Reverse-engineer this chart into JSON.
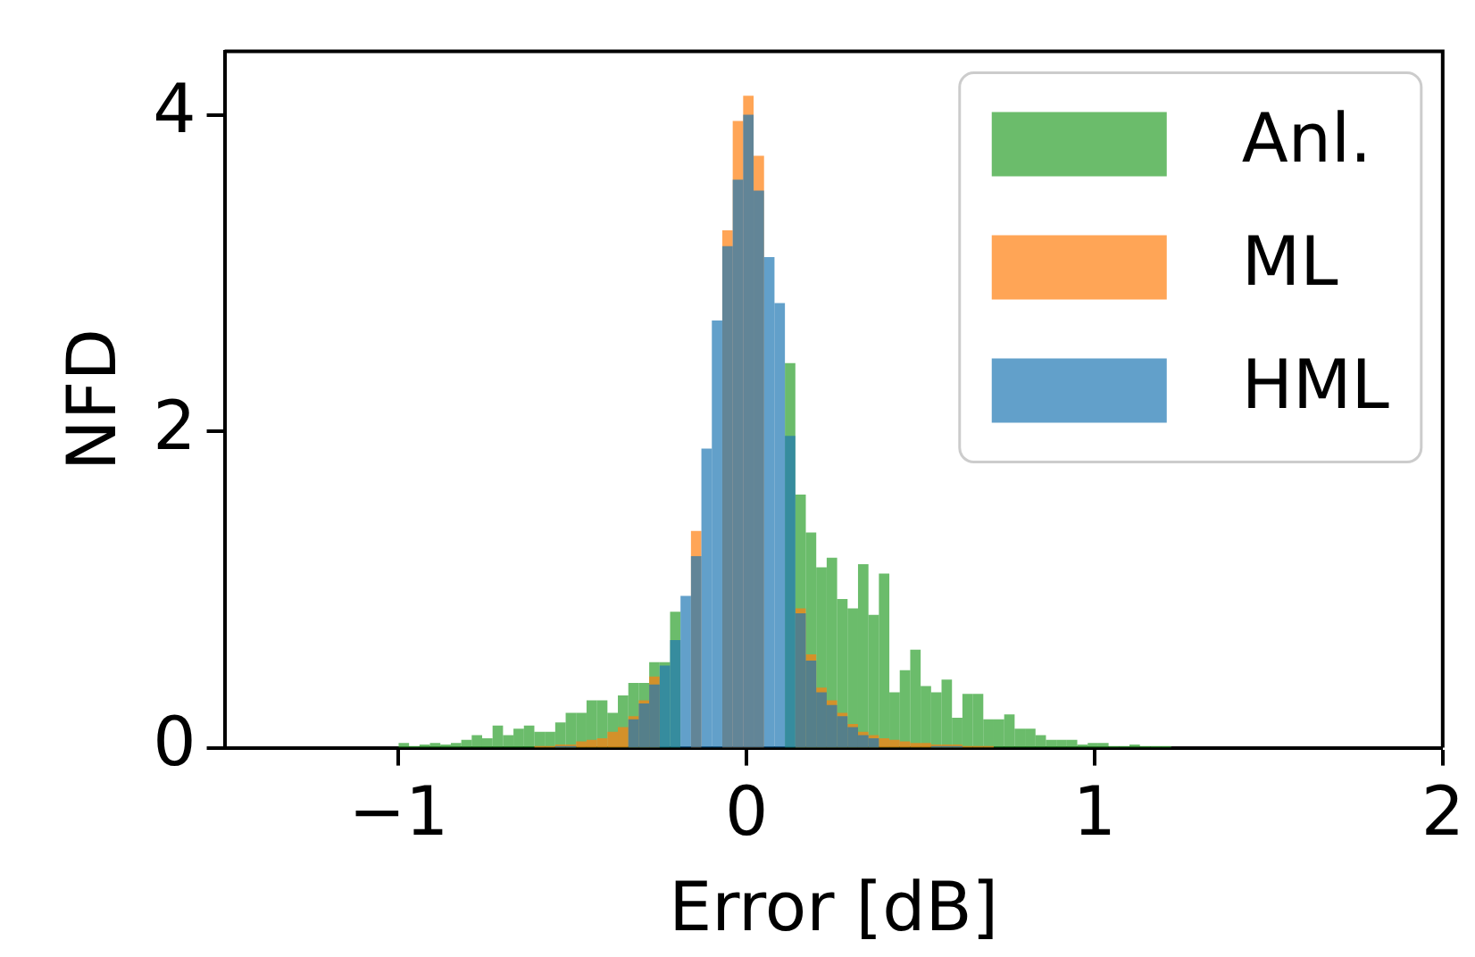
{
  "chart_data": {
    "type": "histogram",
    "xlabel": "Error [dB]",
    "ylabel": "NFD",
    "bins": [
      -1.0,
      -0.97,
      -0.94,
      -0.91,
      -0.88,
      -0.85,
      -0.82,
      -0.79,
      -0.76,
      -0.73,
      -0.7,
      -0.67,
      -0.64,
      -0.61,
      -0.58,
      -0.55,
      -0.52,
      -0.49,
      -0.46,
      -0.43,
      -0.4,
      -0.37,
      -0.34,
      -0.31,
      -0.28,
      -0.25,
      -0.22,
      -0.19,
      -0.16,
      -0.13,
      -0.1,
      -0.07,
      -0.04,
      -0.01,
      0.02,
      0.05,
      0.08,
      0.11,
      0.14,
      0.17,
      0.2,
      0.23,
      0.26,
      0.29,
      0.32,
      0.35,
      0.38,
      0.41,
      0.44,
      0.47,
      0.5,
      0.53,
      0.56,
      0.59,
      0.62,
      0.65,
      0.68,
      0.71,
      0.74,
      0.77,
      0.8,
      0.83,
      0.86,
      0.89,
      0.92,
      0.95,
      0.98,
      1.01,
      1.04,
      1.07,
      1.1,
      1.13,
      1.16,
      1.19,
      1.22
    ],
    "series": [
      {
        "name": "Anl.",
        "color": "#2ca02c",
        "values": [
          0.03,
          0.01,
          0.02,
          0.03,
          0.02,
          0.03,
          0.05,
          0.08,
          0.06,
          0.14,
          0.08,
          0.12,
          0.14,
          0.1,
          0.1,
          0.16,
          0.22,
          0.22,
          0.3,
          0.3,
          0.22,
          0.33,
          0.41,
          0.41,
          0.54,
          0.54,
          0.86,
          null,
          null,
          null,
          null,
          null,
          null,
          null,
          null,
          null,
          null,
          2.43,
          1.6,
          1.36,
          1.14,
          1.2,
          0.94,
          0.88,
          1.16,
          0.84,
          1.1,
          0.35,
          0.49,
          0.62,
          0.39,
          0.35,
          0.43,
          0.19,
          0.34,
          0.34,
          0.18,
          0.18,
          0.21,
          0.12,
          0.12,
          0.08,
          0.05,
          0.05,
          0.05,
          0.02,
          0.03,
          0.03,
          0.01,
          0.01,
          0.02,
          0.01,
          0.01,
          0.01
        ]
      },
      {
        "name": "ML",
        "color": "#ff7f0e",
        "values": [
          0,
          0,
          0,
          0,
          0,
          0,
          0,
          0,
          0,
          0,
          0,
          0,
          0,
          0.01,
          0.01,
          0.02,
          0.02,
          0.04,
          0.05,
          0.06,
          0.1,
          0.13,
          0.2,
          0.3,
          0.45,
          null,
          null,
          null,
          1.37,
          null,
          null,
          3.27,
          3.96,
          4.12,
          3.74,
          null,
          null,
          null,
          0.88,
          0.59,
          0.38,
          0.3,
          0.22,
          0.15,
          0.1,
          0.08,
          0.06,
          0.05,
          0.04,
          0.03,
          0.03,
          0.02,
          0.02,
          0.02,
          0.01,
          0.01,
          0.01,
          0,
          0,
          0,
          0,
          0,
          0,
          0,
          0,
          0,
          0,
          0,
          0,
          0,
          0,
          0,
          0,
          0
        ]
      },
      {
        "name": "HML",
        "color": "#1f77b4",
        "values": [
          0,
          0,
          0,
          0,
          0,
          0,
          0,
          0,
          0,
          0,
          0,
          0,
          0,
          0,
          0,
          0.01,
          0.01,
          null,
          null,
          null,
          null,
          null,
          0.18,
          0.28,
          0.4,
          0.52,
          0.68,
          0.96,
          1.21,
          1.89,
          2.7,
          3.17,
          3.59,
          4.0,
          3.52,
          3.1,
          2.81,
          1.97,
          0.85,
          0.55,
          0.35,
          0.27,
          0.2,
          0.13,
          0.08,
          0.06,
          null,
          null,
          null,
          null,
          null,
          0.01,
          0.01,
          0.01,
          0,
          0,
          0,
          0,
          0,
          0,
          0,
          0,
          0,
          0,
          0,
          0,
          0,
          0,
          0,
          0,
          0,
          0,
          0,
          0
        ]
      }
    ],
    "xlim": [
      -1.5,
      2
    ],
    "xticks": [
      {
        "value": -1,
        "label": "−1"
      },
      0,
      1,
      2
    ],
    "ylim": [
      0,
      4.4
    ],
    "yticks": [
      0,
      2,
      4
    ],
    "grid": false,
    "legend": "top right"
  }
}
